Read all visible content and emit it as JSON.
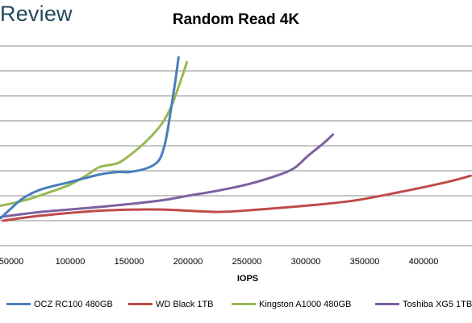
{
  "brand": "Review",
  "chart_data": {
    "type": "line",
    "title": "Random Read 4K",
    "xlabel": "IOPS",
    "ylabel": "",
    "xlim": [
      0,
      440000
    ],
    "ylim": [
      0,
      9
    ],
    "x_ticks": [
      50000,
      100000,
      150000,
      200000,
      250000,
      300000,
      350000,
      400000
    ],
    "x_tick_labels": [
      "50000",
      "100000",
      "150000",
      "200000",
      "250000",
      "300000",
      "350000",
      "400000"
    ],
    "y_gridlines": [
      1,
      2,
      3,
      4,
      5,
      6,
      7,
      8
    ],
    "grid": "horizontal",
    "legend_position": "bottom",
    "series": [
      {
        "name": "OCZ RC100 480GB",
        "color": "#4a7ebb",
        "points": [
          [
            41000,
            1.1
          ],
          [
            50000,
            1.5
          ],
          [
            60000,
            1.9
          ],
          [
            75000,
            2.25
          ],
          [
            100000,
            2.55
          ],
          [
            125000,
            2.85
          ],
          [
            140000,
            2.95
          ],
          [
            150000,
            2.95
          ],
          [
            165000,
            3.1
          ],
          [
            175000,
            3.4
          ],
          [
            180000,
            4.0
          ],
          [
            183000,
            4.7
          ],
          [
            186000,
            5.6
          ],
          [
            189000,
            6.5
          ],
          [
            191000,
            7.2
          ],
          [
            192000,
            7.55
          ]
        ]
      },
      {
        "name": "WD Black 1TB",
        "color": "#be4b48",
        "points": [
          [
            43000,
            1.0
          ],
          [
            75000,
            1.2
          ],
          [
            125000,
            1.4
          ],
          [
            175000,
            1.45
          ],
          [
            225000,
            1.35
          ],
          [
            260000,
            1.45
          ],
          [
            300000,
            1.6
          ],
          [
            340000,
            1.8
          ],
          [
            380000,
            2.15
          ],
          [
            420000,
            2.55
          ],
          [
            440000,
            2.8
          ]
        ]
      },
      {
        "name": "Kingston A1000 480GB",
        "color": "#98b954",
        "points": [
          [
            41000,
            1.6
          ],
          [
            60000,
            1.8
          ],
          [
            80000,
            2.1
          ],
          [
            100000,
            2.45
          ],
          [
            115000,
            2.85
          ],
          [
            125000,
            3.15
          ],
          [
            140000,
            3.3
          ],
          [
            150000,
            3.6
          ],
          [
            165000,
            4.2
          ],
          [
            178000,
            4.9
          ],
          [
            186000,
            5.6
          ],
          [
            193000,
            6.5
          ],
          [
            197000,
            7.05
          ],
          [
            199000,
            7.35
          ]
        ]
      },
      {
        "name": "Toshiba XG5 1TB",
        "color": "#7d60a0",
        "points": [
          [
            41000,
            1.15
          ],
          [
            75000,
            1.35
          ],
          [
            125000,
            1.55
          ],
          [
            175000,
            1.8
          ],
          [
            200000,
            2.0
          ],
          [
            225000,
            2.2
          ],
          [
            250000,
            2.45
          ],
          [
            275000,
            2.8
          ],
          [
            290000,
            3.1
          ],
          [
            302000,
            3.6
          ],
          [
            315000,
            4.1
          ],
          [
            323000,
            4.45
          ]
        ]
      }
    ]
  }
}
